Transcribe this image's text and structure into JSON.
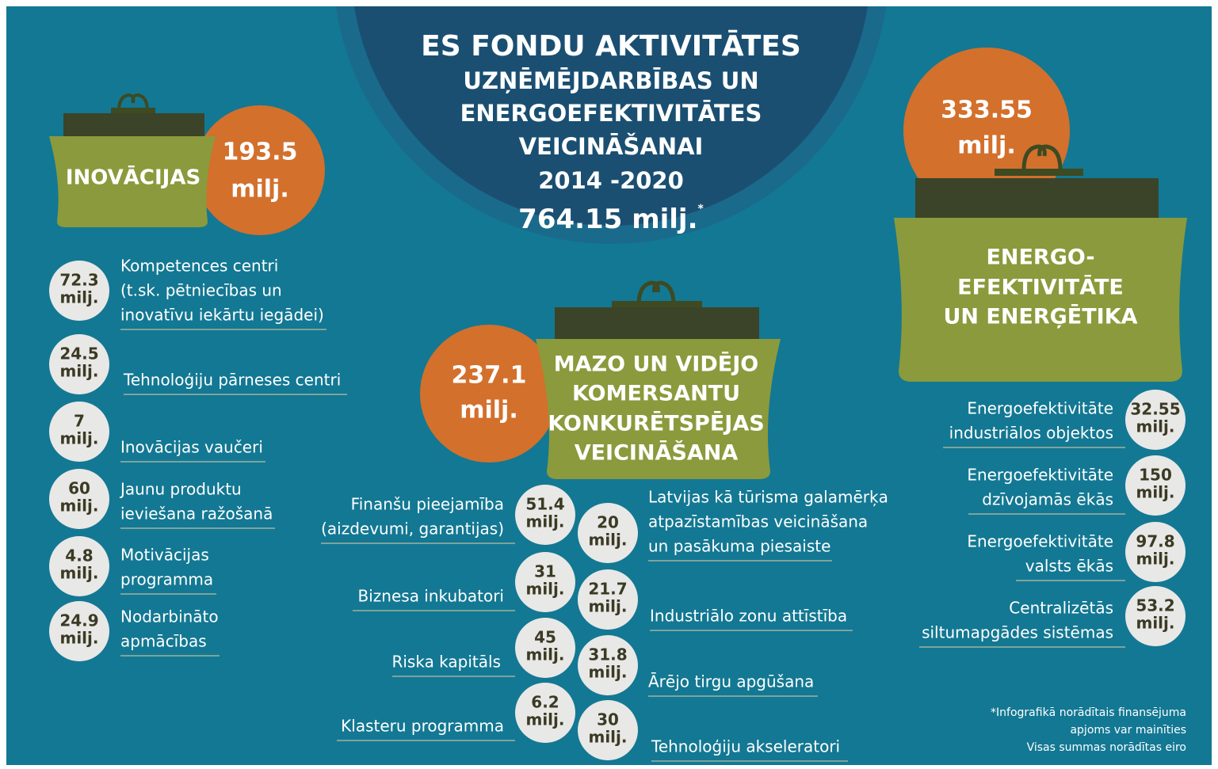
{
  "header": {
    "title": "ES FONDU AKTIVITĀTES",
    "subtitle_lines": [
      "UZŅĒMĒJDARBĪBAS UN",
      "ENERGOEFEKTIVITĀTES",
      "VEICINĀŠANAI",
      "2014 -2020"
    ],
    "total": "764.15 milj.",
    "total_mark": "*"
  },
  "groups": [
    {
      "name_lines": [
        "INOVĀCIJAS"
      ],
      "amount_lines": [
        "193.5",
        "milj."
      ],
      "items": [
        {
          "amount_lines": [
            "72.3",
            "milj."
          ],
          "label_lines": [
            "Kompetences centri",
            "(t.sk. pētniecības un",
            "inovatīvu iekārtu iegādei)"
          ]
        },
        {
          "amount_lines": [
            "24.5",
            "milj."
          ],
          "label_lines": [
            "Tehnoloģiju pārneses centri"
          ]
        },
        {
          "amount_lines": [
            "7",
            "milj."
          ],
          "label_lines": [
            "Inovācijas vaučeri"
          ]
        },
        {
          "amount_lines": [
            "60",
            "milj."
          ],
          "label_lines": [
            "Jaunu produktu",
            "ieviešana ražošanā"
          ]
        },
        {
          "amount_lines": [
            "4.8",
            "milj."
          ],
          "label_lines": [
            "Motivācijas",
            "programma"
          ]
        },
        {
          "amount_lines": [
            "24.9",
            "milj."
          ],
          "label_lines": [
            "Nodarbināto",
            "apmācības"
          ]
        }
      ]
    },
    {
      "name_lines": [
        "MAZO UN VIDĒJO",
        "KOMERSANTU",
        "KONKURĒTSPĒJAS",
        "VEICINĀŠANA"
      ],
      "amount_lines": [
        "237.1",
        "milj."
      ],
      "items": [
        {
          "amount_lines": [
            "51.4",
            "milj."
          ],
          "label_lines": [
            "Finanšu pieejamība",
            "(aizdevumi, garantijas)"
          ]
        },
        {
          "amount_lines": [
            "31",
            "milj."
          ],
          "label_lines": [
            "Biznesa inkubatori"
          ]
        },
        {
          "amount_lines": [
            "45",
            "milj."
          ],
          "label_lines": [
            "Riska kapitāls"
          ]
        },
        {
          "amount_lines": [
            "6.2",
            "milj."
          ],
          "label_lines": [
            "Klasteru programma"
          ]
        },
        {
          "amount_lines": [
            "20",
            "milj."
          ],
          "label_lines": [
            "Latvijas kā tūrisma galamērķa",
            "atpazīstamības veicināšana",
            "un pasākuma piesaiste"
          ]
        },
        {
          "amount_lines": [
            "21.7",
            "milj."
          ],
          "label_lines": [
            "Industriālo zonu attīstība"
          ]
        },
        {
          "amount_lines": [
            "31.8",
            "milj."
          ],
          "label_lines": [
            "Ārējo tirgu apgūšana"
          ]
        },
        {
          "amount_lines": [
            "30",
            "milj."
          ],
          "label_lines": [
            "Tehnoloģiju akseleratori"
          ]
        }
      ]
    },
    {
      "name_lines": [
        "ENERGO-",
        "EFEKTIVITĀTE",
        "UN ENERĢĒTIKA"
      ],
      "amount_lines": [
        "333.55",
        "milj."
      ],
      "items": [
        {
          "amount_lines": [
            "32.55",
            "milj."
          ],
          "label_lines": [
            "Energoefektivitāte",
            "industriālos objektos"
          ]
        },
        {
          "amount_lines": [
            "150",
            "milj."
          ],
          "label_lines": [
            "Energoefektivitāte",
            "dzīvojamās ēkās"
          ]
        },
        {
          "amount_lines": [
            "97.8",
            "milj."
          ],
          "label_lines": [
            "Energoefektivitāte",
            "valsts ēkās"
          ]
        },
        {
          "amount_lines": [
            "53.2",
            "milj."
          ],
          "label_lines": [
            "Centralizētās",
            "siltumapgādes sistēmas"
          ]
        }
      ]
    }
  ],
  "footnote": [
    "*Infografikā norādītais finansējuma",
    "apjoms var mainīties",
    "Visas summas norādītas eiro"
  ]
}
